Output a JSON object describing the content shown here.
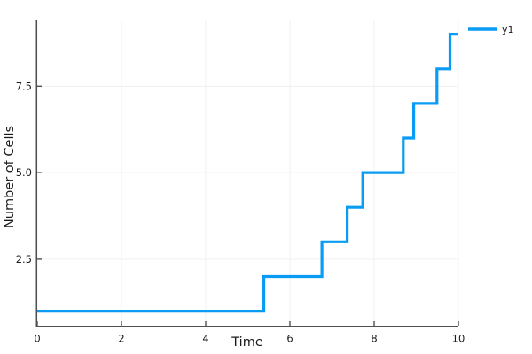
{
  "figure": {
    "background_color": "#ffffff",
    "axis_color": "#4f4f4f",
    "grid_color": "#f0f0f0",
    "text_color": "#1a1a1a"
  },
  "chart_data": {
    "type": "line",
    "line_shape": "step-post",
    "title": "",
    "xlabel": "Time",
    "ylabel": "Number of Cells",
    "xlim": [
      0,
      10
    ],
    "ylim": [
      0.58,
      9.4
    ],
    "grid": true,
    "legend_position": "top-right",
    "x_ticks": {
      "values": [
        0,
        2,
        4,
        6,
        8,
        10
      ],
      "labels": [
        "0",
        "2",
        "4",
        "6",
        "8",
        "10"
      ]
    },
    "y_ticks": {
      "values": [
        2.5,
        5.0,
        7.5
      ],
      "labels": [
        "2.5",
        "5.0",
        "7.5"
      ]
    },
    "legend": {
      "entries": [
        {
          "label": "y1",
          "color": "#0a9cf4"
        }
      ]
    },
    "series": [
      {
        "name": "y1",
        "color": "#0a9cf4",
        "stroke_width": 3.2,
        "points": [
          [
            0,
            1
          ],
          [
            5.38,
            2
          ],
          [
            6.76,
            3
          ],
          [
            7.36,
            4
          ],
          [
            7.73,
            5
          ],
          [
            8.69,
            6
          ],
          [
            8.94,
            7
          ],
          [
            9.49,
            8
          ],
          [
            9.8,
            9
          ],
          [
            10,
            9
          ]
        ]
      }
    ]
  }
}
